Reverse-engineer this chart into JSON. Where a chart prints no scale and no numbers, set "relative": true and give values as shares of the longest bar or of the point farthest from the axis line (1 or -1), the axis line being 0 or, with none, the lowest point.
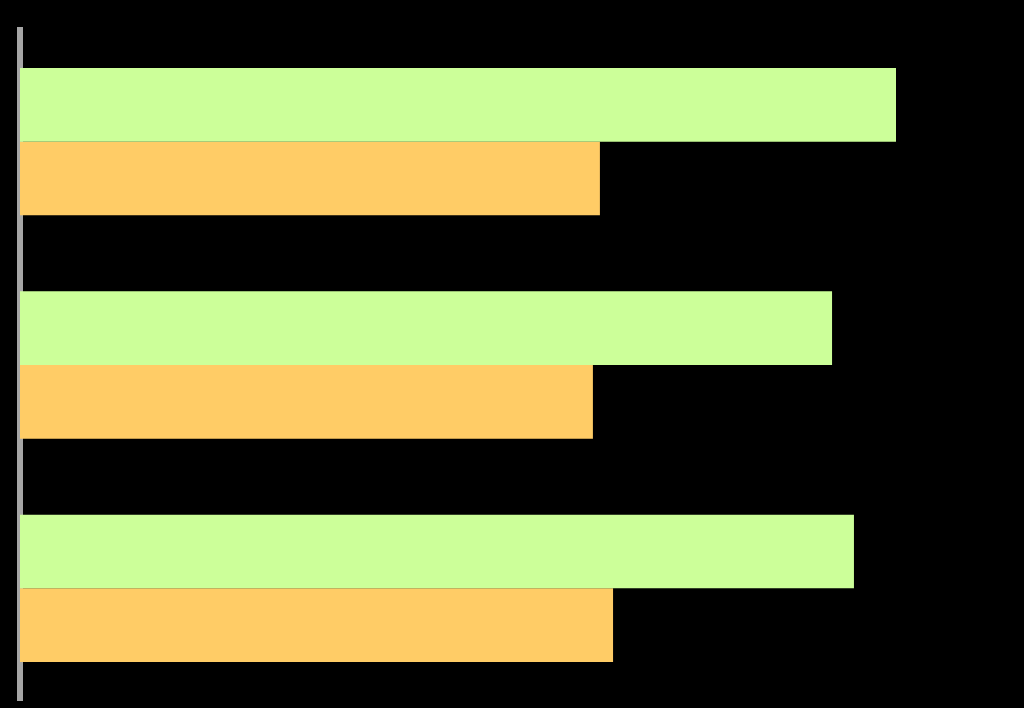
{
  "chart_data": {
    "type": "bar",
    "orientation": "horizontal",
    "relative": true,
    "categories": [
      null,
      null,
      null
    ],
    "series": [
      {
        "color": "#ccff99",
        "values": [
          1,
          0.927,
          0.952
        ]
      },
      {
        "color": "#ffcc66",
        "values": [
          0.662,
          0.654,
          0.677
        ]
      }
    ]
  }
}
